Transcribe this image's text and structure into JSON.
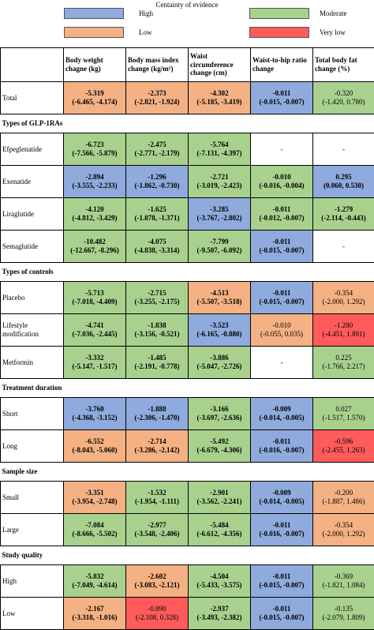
{
  "legend": {
    "title": "Centainty of evidence",
    "items": [
      {
        "label": "High",
        "color": "#8faadc"
      },
      {
        "label": "Moderate",
        "color": "#a9d18e"
      },
      {
        "label": "Low",
        "color": "#f4b183"
      },
      {
        "label": "Very low",
        "color": "#ff5b5b"
      }
    ]
  },
  "table": {
    "headers": [
      "",
      "Body weight chagne (kg)",
      "Body mass index change (kg/m²)",
      "Waist circumference change (cm)",
      "Waist-to-hip ratio change",
      "Total body fat change (%)"
    ],
    "rows": [
      {
        "type": "data",
        "label": "Total",
        "cells": [
          {
            "v1": "-5.319",
            "v2": "(-6.465, -4.174)",
            "level": "Low",
            "bold": true
          },
          {
            "v1": "-2.373",
            "v2": "(-2.821, -1.924)",
            "level": "Low",
            "bold": true
          },
          {
            "v1": "-4.302",
            "v2": "(-5.185, -3.419)",
            "level": "Low",
            "bold": true
          },
          {
            "v1": "-0.011",
            "v2": "(-0.015, -0.007)",
            "level": "High",
            "bold": true
          },
          {
            "v1": "-0.320",
            "v2": "(-1.420, 0.780)",
            "level": "Moderate",
            "bold": false
          }
        ]
      },
      {
        "type": "section",
        "label": "Types of GLP-1RAs"
      },
      {
        "type": "data",
        "label": "Efpeglenatide",
        "cells": [
          {
            "v1": "-6.723",
            "v2": "(-7.566, -5.879)",
            "level": "Moderate",
            "bold": true
          },
          {
            "v1": "-2.475",
            "v2": "(-2.771, -2.179)",
            "level": "Moderate",
            "bold": true
          },
          {
            "v1": "-5.764",
            "v2": "(-7.131, -4.397)",
            "level": "Moderate",
            "bold": true
          },
          {
            "v1": "-",
            "v2": "",
            "level": "None",
            "bold": false
          },
          {
            "v1": "-",
            "v2": "",
            "level": "None",
            "bold": false
          }
        ]
      },
      {
        "type": "data",
        "label": "Exenatide",
        "cells": [
          {
            "v1": "-2.894",
            "v2": "(-3.555, -2.233)",
            "level": "High",
            "bold": true
          },
          {
            "v1": "-1.296",
            "v2": "(-1.862, -0.730)",
            "level": "High",
            "bold": true
          },
          {
            "v1": "-2.721",
            "v2": "(-3.019, -2.423)",
            "level": "Moderate",
            "bold": true
          },
          {
            "v1": "-0.010",
            "v2": "(-0.016, -0.004)",
            "level": "Moderate",
            "bold": true
          },
          {
            "v1": "0.295",
            "v2": "(0.060, 0.530)",
            "level": "High",
            "bold": true
          }
        ]
      },
      {
        "type": "data",
        "label": "Liraglutide",
        "cells": [
          {
            "v1": "-4.120",
            "v2": "(-4.812, -3.429)",
            "level": "Moderate",
            "bold": true
          },
          {
            "v1": "-1.625",
            "v2": "(-1.878, -1.371)",
            "level": "Moderate",
            "bold": true
          },
          {
            "v1": "-3.285",
            "v2": "(-3.767, -2.802)",
            "level": "High",
            "bold": true
          },
          {
            "v1": "-0.011",
            "v2": "(-0.012, -0.007)",
            "level": "Moderate",
            "bold": true
          },
          {
            "v1": "-1.279",
            "v2": "(-2.114, -0.443)",
            "level": "Moderate",
            "bold": true
          }
        ]
      },
      {
        "type": "data",
        "label": "Semaglutide",
        "cells": [
          {
            "v1": "-10.482",
            "v2": "(-12.667, -8.296)",
            "level": "Moderate",
            "bold": true
          },
          {
            "v1": "-4.075",
            "v2": "(-4.838, -3.314)",
            "level": "Moderate",
            "bold": true
          },
          {
            "v1": "-7.799",
            "v2": "(-9.507, -6.092)",
            "level": "Moderate",
            "bold": true
          },
          {
            "v1": "-0.011",
            "v2": "(-0.015, -0.007)",
            "level": "High",
            "bold": true
          },
          {
            "v1": "-",
            "v2": "",
            "level": "None",
            "bold": false
          }
        ]
      },
      {
        "type": "section",
        "label": "Types of controls"
      },
      {
        "type": "data",
        "label": "Placebo",
        "cells": [
          {
            "v1": "-5.713",
            "v2": "(-7.018, -4.409)",
            "level": "Moderate",
            "bold": true
          },
          {
            "v1": "-2.715",
            "v2": "(-3.255, -2.175)",
            "level": "Moderate",
            "bold": true
          },
          {
            "v1": "-4.513",
            "v2": "(-5.507, -3.518)",
            "level": "Low",
            "bold": true
          },
          {
            "v1": "-0.011",
            "v2": "(-0.015, -0.007)",
            "level": "High",
            "bold": true
          },
          {
            "v1": "-0.354",
            "v2": "(-2.000, 1.292)",
            "level": "Low",
            "bold": false
          }
        ]
      },
      {
        "type": "data",
        "label": "Lifestyle modification",
        "cells": [
          {
            "v1": "-4.741",
            "v2": "(-7.036, -2.445)",
            "level": "Moderate",
            "bold": true
          },
          {
            "v1": "-1.838",
            "v2": "(-3.156, -0.521)",
            "level": "Moderate",
            "bold": true
          },
          {
            "v1": "-3.523",
            "v2": "(-6.165, -0.880)",
            "level": "High",
            "bold": true
          },
          {
            "v1": "-0.010",
            "v2": "(-0.055, 0.035)",
            "level": "Low",
            "bold": false
          },
          {
            "v1": "-1.280",
            "v2": "(-4.451, 1.891)",
            "level": "VeryLow",
            "bold": false
          }
        ]
      },
      {
        "type": "data",
        "label": "Metformin",
        "cells": [
          {
            "v1": "-3.332",
            "v2": "(-5.147, -1.517)",
            "level": "Moderate",
            "bold": true
          },
          {
            "v1": "-1.485",
            "v2": "(-2.191, -0.778)",
            "level": "Moderate",
            "bold": true
          },
          {
            "v1": "-3.886",
            "v2": "(-5.047, -2.726)",
            "level": "Moderate",
            "bold": true
          },
          {
            "v1": "-",
            "v2": "",
            "level": "None",
            "bold": false
          },
          {
            "v1": "0.225",
            "v2": "(-1.766, 2.217)",
            "level": "Moderate",
            "bold": false
          }
        ]
      },
      {
        "type": "section",
        "label": "Treatment duration"
      },
      {
        "type": "data",
        "label": "Short",
        "cells": [
          {
            "v1": "-3.760",
            "v2": "(-4.368, -3.152)",
            "level": "High",
            "bold": true
          },
          {
            "v1": "-1.888",
            "v2": "(-2.306, -1.470)",
            "level": "High",
            "bold": true
          },
          {
            "v1": "-3.166",
            "v2": "(-3.697, -2.636)",
            "level": "Moderate",
            "bold": true
          },
          {
            "v1": "-0.009",
            "v2": "(-0.014, -0.005)",
            "level": "High",
            "bold": true
          },
          {
            "v1": "0.027",
            "v2": "(-1.517, 1.570)",
            "level": "Moderate",
            "bold": false
          }
        ]
      },
      {
        "type": "data",
        "label": "Long",
        "cells": [
          {
            "v1": "-6.552",
            "v2": "(-8.043, -5.060)",
            "level": "Low",
            "bold": true
          },
          {
            "v1": "-2.714",
            "v2": "(-3.286, -2.142)",
            "level": "Low",
            "bold": true
          },
          {
            "v1": "-5.492",
            "v2": "(-6.679, -4.306)",
            "level": "Moderate",
            "bold": true
          },
          {
            "v1": "-0.011",
            "v2": "(-0.016, -0.007)",
            "level": "High",
            "bold": true
          },
          {
            "v1": "-0.596",
            "v2": "(-2.455, 1.263)",
            "level": "VeryLow",
            "bold": false
          }
        ]
      },
      {
        "type": "section",
        "label": "Sample size"
      },
      {
        "type": "data",
        "label": "Small",
        "cells": [
          {
            "v1": "-3.351",
            "v2": "(-3.954, -2.748)",
            "level": "Low",
            "bold": true
          },
          {
            "v1": "-1.532",
            "v2": "(-1.954, -1.111)",
            "level": "Moderate",
            "bold": true
          },
          {
            "v1": "-2.901",
            "v2": "(-3.562, -2.241)",
            "level": "Moderate",
            "bold": true
          },
          {
            "v1": "-0.009",
            "v2": "(-0.014, -0.005)",
            "level": "High",
            "bold": true
          },
          {
            "v1": "-0.200",
            "v2": "(-1.887, 1.486)",
            "level": "Low",
            "bold": false
          }
        ]
      },
      {
        "type": "data",
        "label": "Large",
        "cells": [
          {
            "v1": "-7.084",
            "v2": "(-8.666, -5.502)",
            "level": "Moderate",
            "bold": true
          },
          {
            "v1": "-2.977",
            "v2": "(-3.548, -2.406)",
            "level": "Moderate",
            "bold": true
          },
          {
            "v1": "-5.484",
            "v2": "(-6.612, -4.356)",
            "level": "Moderate",
            "bold": true
          },
          {
            "v1": "-0.011",
            "v2": "(-0.016, -0.007)",
            "level": "High",
            "bold": true
          },
          {
            "v1": "-0.354",
            "v2": "(-2.000, 1.292)",
            "level": "Low",
            "bold": false
          }
        ]
      },
      {
        "type": "section",
        "label": "Study quality"
      },
      {
        "type": "data",
        "label": "High",
        "cells": [
          {
            "v1": "-5.832",
            "v2": "(-7.049, -4.614)",
            "level": "Moderate",
            "bold": true
          },
          {
            "v1": "-2.602",
            "v2": "(-3.083, -2.121)",
            "level": "Low",
            "bold": true
          },
          {
            "v1": "-4.504",
            "v2": "(-5.433, -3.575)",
            "level": "Moderate",
            "bold": true
          },
          {
            "v1": "-0.011",
            "v2": "(-0.015, -0.007)",
            "level": "High",
            "bold": true
          },
          {
            "v1": "-0.369",
            "v2": "(-1.821, 1.084)",
            "level": "Moderate",
            "bold": false
          }
        ]
      },
      {
        "type": "data",
        "label": "Low",
        "cells": [
          {
            "v1": "-2.167",
            "v2": "(-3.318, -1.016)",
            "level": "Low",
            "bold": true
          },
          {
            "v1": "-0.890",
            "v2": "(-2.108, 0.328)",
            "level": "VeryLow",
            "bold": false
          },
          {
            "v1": "-2.937",
            "v2": "(-3.493, -2.382)",
            "level": "Moderate",
            "bold": true
          },
          {
            "v1": "-0.011",
            "v2": "(-0.015, -0.007)",
            "level": "High",
            "bold": true
          },
          {
            "v1": "-0.135",
            "v2": "(-2.079, 1.809)",
            "level": "Moderate",
            "bold": false
          }
        ]
      }
    ]
  }
}
